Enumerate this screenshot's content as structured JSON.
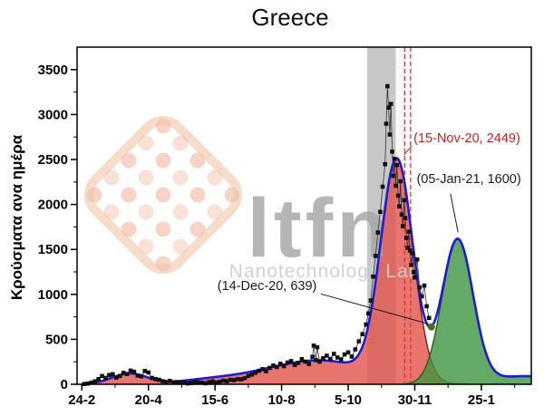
{
  "watermark": {
    "text": "ltfn",
    "subtitle": "Nanotechnology Lab"
  },
  "chart_data": {
    "type": "line+scatter+area",
    "title": "Greece",
    "xlabel": "",
    "ylabel": "Κρούσματα ανα ημέρα",
    "xlim": [
      -4,
      378
    ],
    "ylim": [
      0,
      3750
    ],
    "grid": false,
    "legend": "none",
    "x_ticks": {
      "days": [
        0,
        56,
        112,
        168,
        224,
        280,
        336
      ],
      "labels": [
        "24-2",
        "20-4",
        "15-6",
        "10-8",
        "5-10",
        "30-11",
        "25-1"
      ]
    },
    "x_minor_days": [
      28,
      84,
      140,
      196,
      252,
      308,
      364
    ],
    "y_ticks": [
      0,
      500,
      1000,
      1500,
      2000,
      2500,
      3000,
      3500
    ],
    "y_minor": [
      250,
      750,
      1250,
      1750,
      2250,
      2750,
      3250
    ],
    "highlight_band_days": {
      "from": 240,
      "to": 264
    },
    "dashed_line_days": [
      271.5,
      276.5
    ],
    "components": [
      {
        "name": "wave-1-spring",
        "group": "red",
        "amplitude": 118,
        "center": 40,
        "sigma": 15
      },
      {
        "name": "spring-tail",
        "group": "red",
        "amplitude": 45,
        "center": 105,
        "sigma": 25
      },
      {
        "name": "summer-rise",
        "group": "red",
        "amplitude": 65,
        "center": 150,
        "sigma": 28
      },
      {
        "name": "autumn-base",
        "group": "red",
        "amplitude": 255,
        "center": 204,
        "sigma": 37
      },
      {
        "name": "wave-2",
        "group": "red",
        "amplitude": 2449,
        "center": 265,
        "sigma": 13.5
      },
      {
        "name": "wave-3-forecast",
        "group": "green",
        "amplitude": 1600,
        "center": 316,
        "sigma": 13
      },
      {
        "name": "late-tail",
        "group": "green",
        "amplitude": 90,
        "center": 373,
        "sigma": 30
      }
    ],
    "valley_marker": {
      "day": 294,
      "value": 639,
      "color": "#4e6b1f"
    },
    "annotations": [
      {
        "text": "(15-Nov-20, 2449)",
        "color": "#cb2121",
        "text_day": 279,
        "text_value": 2690,
        "anchor": "start",
        "leader": [
          [
            271,
            2554
          ],
          [
            277.5,
            2650
          ]
        ]
      },
      {
        "text": "(05-Jan-21, 1600)",
        "color": "#1a1a1a",
        "text_day": 281.5,
        "text_value": 2240,
        "anchor": "start",
        "leader": [
          [
            310,
            2120
          ],
          [
            316.4,
            1690
          ]
        ]
      },
      {
        "text": "(14-Dec-20, 639)",
        "color": "#1a1a1a",
        "text_day": 114,
        "text_value": 1050,
        "anchor": "start",
        "leader": [
          [
            201,
            1005
          ],
          [
            291.5,
            672
          ]
        ]
      }
    ],
    "scatter": [
      [
        2,
        3
      ],
      [
        5,
        8
      ],
      [
        8,
        18
      ],
      [
        11,
        32
      ],
      [
        14,
        58
      ],
      [
        17,
        92
      ],
      [
        20,
        70
      ],
      [
        23,
        103
      ],
      [
        26,
        112
      ],
      [
        29,
        74
      ],
      [
        32,
        92
      ],
      [
        35,
        128
      ],
      [
        38,
        114
      ],
      [
        41,
        152
      ],
      [
        44,
        140
      ],
      [
        47,
        97
      ],
      [
        50,
        88
      ],
      [
        53,
        148
      ],
      [
        56,
        131
      ],
      [
        59,
        70
      ],
      [
        62,
        58
      ],
      [
        65,
        50
      ],
      [
        68,
        34
      ],
      [
        71,
        26
      ],
      [
        74,
        38
      ],
      [
        77,
        19
      ],
      [
        80,
        24
      ],
      [
        83,
        17
      ],
      [
        86,
        23
      ],
      [
        89,
        10
      ],
      [
        92,
        14
      ],
      [
        95,
        29
      ],
      [
        98,
        21
      ],
      [
        101,
        18
      ],
      [
        104,
        11
      ],
      [
        107,
        24
      ],
      [
        110,
        32
      ],
      [
        113,
        19
      ],
      [
        116,
        27
      ],
      [
        119,
        40
      ],
      [
        122,
        34
      ],
      [
        125,
        50
      ],
      [
        128,
        46
      ],
      [
        131,
        58
      ],
      [
        134,
        55
      ],
      [
        137,
        68
      ],
      [
        140,
        92
      ],
      [
        143,
        108
      ],
      [
        146,
        128
      ],
      [
        149,
        150
      ],
      [
        152,
        168
      ],
      [
        155,
        145
      ],
      [
        158,
        182
      ],
      [
        161,
        208
      ],
      [
        164,
        192
      ],
      [
        167,
        228
      ],
      [
        170,
        202
      ],
      [
        173,
        242
      ],
      [
        176,
        258
      ],
      [
        179,
        215
      ],
      [
        182,
        238
      ],
      [
        185,
        280
      ],
      [
        188,
        252
      ],
      [
        191,
        226
      ],
      [
        194,
        305
      ],
      [
        195,
        430
      ],
      [
        197,
        268
      ],
      [
        198,
        412
      ],
      [
        200,
        252
      ],
      [
        203,
        290
      ],
      [
        206,
        318
      ],
      [
        209,
        282
      ],
      [
        212,
        338
      ],
      [
        215,
        298
      ],
      [
        218,
        278
      ],
      [
        221,
        332
      ],
      [
        224,
        355
      ],
      [
        227,
        308
      ],
      [
        230,
        388
      ],
      [
        233,
        478
      ],
      [
        236,
        558
      ],
      [
        239,
        665
      ],
      [
        241,
        788
      ],
      [
        243,
        932
      ],
      [
        245,
        1198
      ],
      [
        247,
        1428
      ],
      [
        249,
        1688
      ],
      [
        251,
        1918
      ],
      [
        253,
        2198
      ],
      [
        255,
        2448
      ],
      [
        256,
        2898
      ],
      [
        257,
        3316
      ],
      [
        258,
        3078
      ],
      [
        259,
        2778
      ],
      [
        260,
        3118
      ],
      [
        261,
        2588
      ],
      [
        262,
        2318
      ],
      [
        263,
        2508
      ],
      [
        264,
        2208
      ],
      [
        265,
        2438
      ],
      [
        266,
        2098
      ],
      [
        267,
        1978
      ],
      [
        268,
        2258
      ],
      [
        269,
        1888
      ],
      [
        270,
        1758
      ],
      [
        271,
        2048
      ],
      [
        272,
        1848
      ],
      [
        273,
        1628
      ],
      [
        274,
        1518
      ],
      [
        275,
        1698
      ],
      [
        276,
        1488
      ],
      [
        277,
        1328
      ],
      [
        278,
        1458
      ],
      [
        279,
        1248
      ],
      [
        280,
        1188
      ],
      [
        282,
        1388
      ],
      [
        284,
        1078
      ],
      [
        286,
        978
      ],
      [
        288,
        1098
      ],
      [
        290,
        868
      ],
      [
        292,
        738
      ]
    ],
    "colors": {
      "band": "#c7c7c7",
      "total": "#1c1cd6",
      "wave2_fill": "#e1524a",
      "wave2_stroke": "#801a12",
      "wave3_fill": "#3f9440",
      "wave3_stroke": "#2c5e18",
      "dashed": "#cf3b3b",
      "scatter": "#111111"
    }
  }
}
